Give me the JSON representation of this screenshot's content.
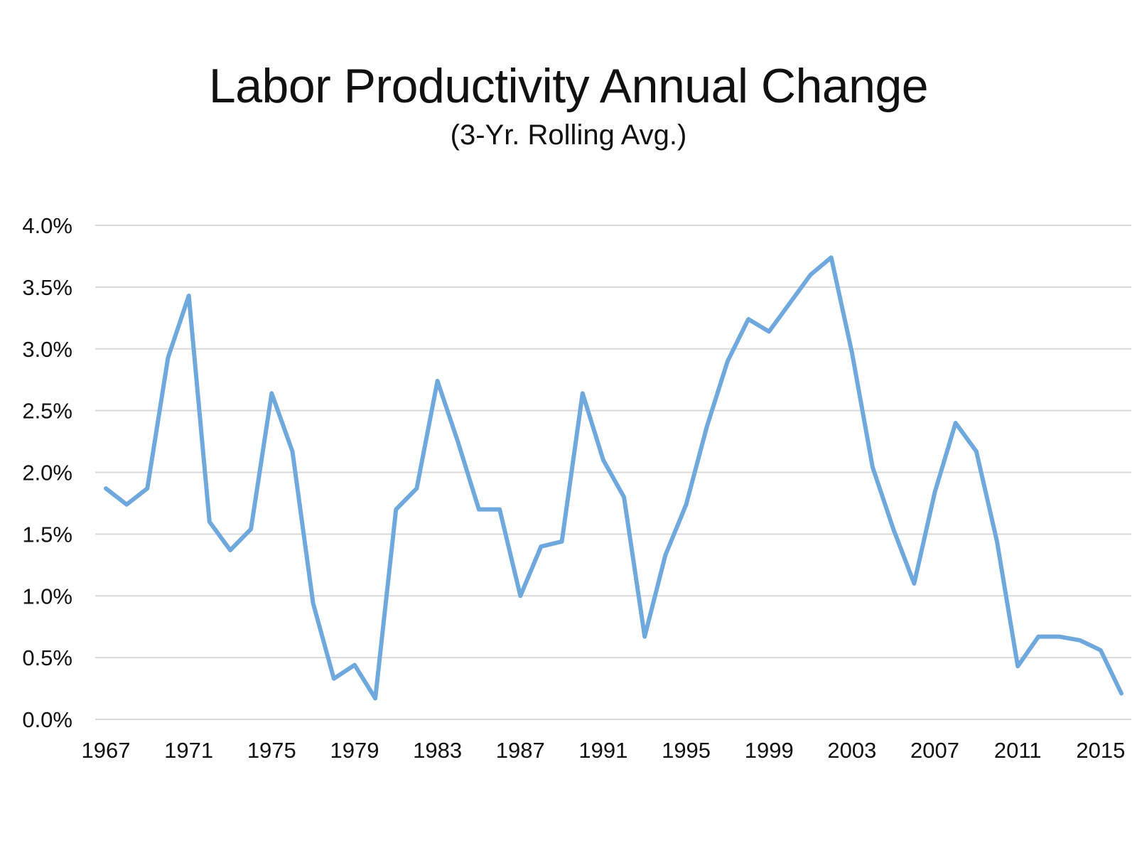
{
  "chart_data": {
    "type": "line",
    "title": "Labor Productivity Annual Change",
    "subtitle": "(3-Yr. Rolling Avg.)",
    "xlabel": "",
    "ylabel": "",
    "x": [
      1967,
      1968,
      1969,
      1970,
      1971,
      1972,
      1973,
      1974,
      1975,
      1976,
      1977,
      1978,
      1979,
      1980,
      1981,
      1982,
      1983,
      1984,
      1985,
      1986,
      1987,
      1988,
      1989,
      1990,
      1991,
      1992,
      1993,
      1994,
      1995,
      1996,
      1997,
      1998,
      1999,
      2000,
      2001,
      2002,
      2003,
      2004,
      2005,
      2006,
      2007,
      2008,
      2009,
      2010,
      2011,
      2012,
      2013,
      2014,
      2015,
      2016
    ],
    "x_ticks": [
      "1967",
      "1971",
      "1975",
      "1979",
      "1983",
      "1987",
      "1991",
      "1995",
      "1999",
      "2003",
      "2007",
      "2011",
      "2015"
    ],
    "y_ticks": [
      "0.0%",
      "0.5%",
      "1.0%",
      "1.5%",
      "2.0%",
      "2.5%",
      "3.0%",
      "3.5%",
      "4.0%"
    ],
    "ylim": [
      0,
      4.0
    ],
    "grid": true,
    "legend": "none",
    "series": [
      {
        "color": "#6fa8dc",
        "values": [
          1.87,
          1.74,
          1.87,
          2.93,
          3.43,
          1.6,
          1.37,
          1.54,
          2.64,
          2.17,
          0.94,
          0.33,
          0.44,
          0.17,
          1.7,
          1.87,
          2.74,
          2.24,
          1.7,
          1.7,
          1.0,
          1.4,
          1.44,
          2.64,
          2.1,
          1.8,
          0.67,
          1.33,
          1.74,
          2.37,
          2.9,
          3.24,
          3.14,
          3.37,
          3.6,
          3.74,
          2.97,
          2.04,
          1.54,
          1.1,
          1.84,
          2.4,
          2.17,
          1.44,
          0.43,
          0.67,
          0.67,
          0.64,
          0.56,
          0.21
        ]
      }
    ]
  }
}
